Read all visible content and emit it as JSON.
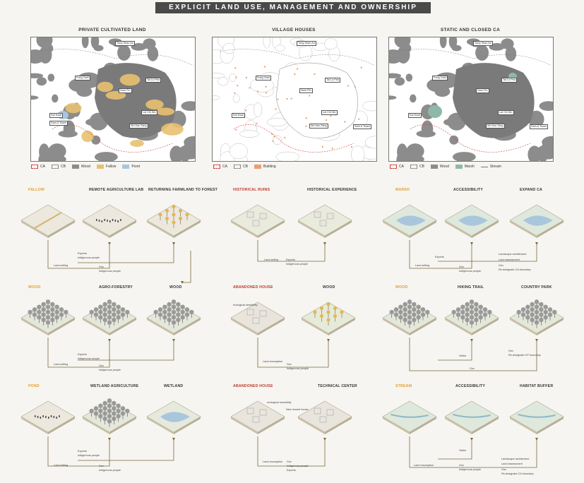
{
  "header": {
    "title": "EXPLICIT LAND USE, MANAGEMENT AND OWNERSHIP"
  },
  "maps": [
    {
      "title": "PRIVATE CULTIVATED LAND",
      "legend": [
        {
          "label": "CA",
          "swatch": "dash"
        },
        {
          "label": "CB",
          "swatch": "dashg"
        },
        {
          "label": "Wood",
          "color": "#8c8c8c"
        },
        {
          "label": "Fallow",
          "color": "#e8c070"
        },
        {
          "label": "Pond",
          "color": "#a9c6dc"
        }
      ]
    },
    {
      "title": "VILLAGE HOUSES",
      "legend": [
        {
          "label": "CA",
          "swatch": "dash"
        },
        {
          "label": "CB",
          "swatch": "dashg"
        },
        {
          "label": "Building",
          "color": "#e8a070"
        }
      ]
    },
    {
      "title": "STATIC AND CLOSED CA",
      "legend": [
        {
          "label": "CA",
          "swatch": "dash"
        },
        {
          "label": "CB",
          "swatch": "dashg"
        },
        {
          "label": "Wood",
          "color": "#8c8c8c"
        },
        {
          "label": "Marsh",
          "color": "#8fb8a8"
        },
        {
          "label": "Stream",
          "swatch": "line"
        }
      ]
    }
  ],
  "places": [
    "Tung Shan Au",
    "Fung Yuen",
    "Tai Lo Pea",
    "Nam Pin",
    "Lai Chi Wo",
    "Wu Kau Tang",
    "Kat Kwai",
    "Sam A Tsuen"
  ],
  "rows": [
    {
      "col1": {
        "lead": "FALLOW",
        "a": "REMOTE AGRICULTURE LAB",
        "b": "RETURNING FARMLAND TO FOREST"
      },
      "col2": {
        "lead": "HISTORICAL RUINS",
        "a": "HISTORICAL EXPERIENCE"
      },
      "col3": {
        "lead": "MARSH",
        "a": "ACCESSIBILITY",
        "b": "EXPAND CA"
      }
    },
    {
      "col1": {
        "lead": "WOOD",
        "a": "AGRO-FORESTRY",
        "b": "WOOD"
      },
      "col2": {
        "lead": "ABANDONED HOUSE",
        "a": "WOOD"
      },
      "col3": {
        "lead": "WOOD",
        "a": "HIKING TRAIL",
        "b": "COUNTRY PARK"
      }
    },
    {
      "col1": {
        "lead": "POND",
        "a": "WETLAND AGRICULTURE",
        "b": "WETLAND"
      },
      "col2": {
        "lead": "ABANDONED HOUSE",
        "a": "TECHNICAL CENTER"
      },
      "col3": {
        "lead": "STREAM",
        "a": "ACCESSIBILITY",
        "b": "HABITAT BUFFER"
      }
    }
  ],
  "notes": {
    "land_selling": "Land selling",
    "land_resumption": "Land resumption",
    "experts": "Experts",
    "indigenous": "Indigenous people",
    "gov": "Gov",
    "visitor": "Visitor",
    "landscape_arch": "Landscape architecture",
    "land_assessment": "Land assessment",
    "redesignate_ca": "Re-designate CA boundary",
    "redesignate_cp": "Re-designate CP boundary",
    "ecological_sensitivity": "ecological sensitivity",
    "new_house": "New reused house"
  }
}
